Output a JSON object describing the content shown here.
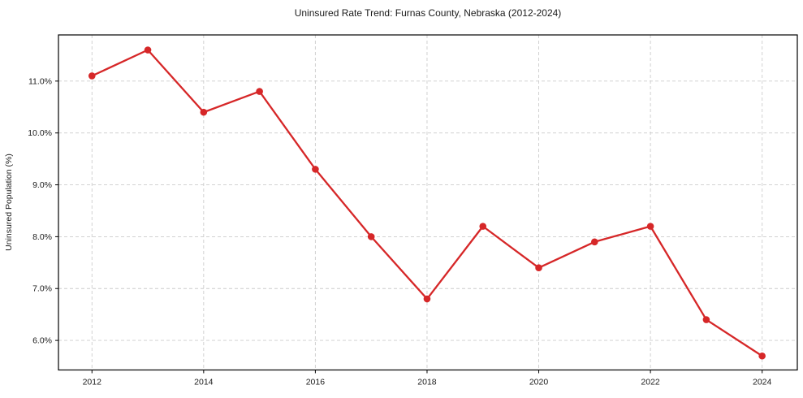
{
  "chart_data": {
    "type": "line",
    "title": "Uninsured Rate Trend: Furnas County, Nebraska (2012-2024)",
    "xlabel": "",
    "ylabel": "Uninsured Population (%)",
    "x": [
      2012,
      2013,
      2014,
      2015,
      2016,
      2017,
      2018,
      2019,
      2020,
      2021,
      2022,
      2023,
      2024
    ],
    "values": [
      11.1,
      11.6,
      10.4,
      10.8,
      9.3,
      8.0,
      6.8,
      8.2,
      7.4,
      7.9,
      8.2,
      6.4,
      5.7
    ],
    "xlim": [
      2011.4,
      2024.63
    ],
    "ylim": [
      5.43,
      11.89
    ],
    "xticks": [
      2012,
      2014,
      2016,
      2018,
      2020,
      2022,
      2024
    ],
    "xtick_labels": [
      "2012",
      "2014",
      "2016",
      "2018",
      "2020",
      "2022",
      "2024"
    ],
    "yticks": [
      6,
      7,
      8,
      9,
      10,
      11
    ],
    "ytick_labels": [
      "6.0%",
      "7.0%",
      "8.0%",
      "9.0%",
      "10.0%",
      "11.0%"
    ],
    "grid": true,
    "legend": "none",
    "colors": {
      "line": "#d62728",
      "marker": "#d62728",
      "grid": "#cccccc",
      "spine": "#000000",
      "background": "#ffffff",
      "text": "#1a1a1a"
    }
  }
}
